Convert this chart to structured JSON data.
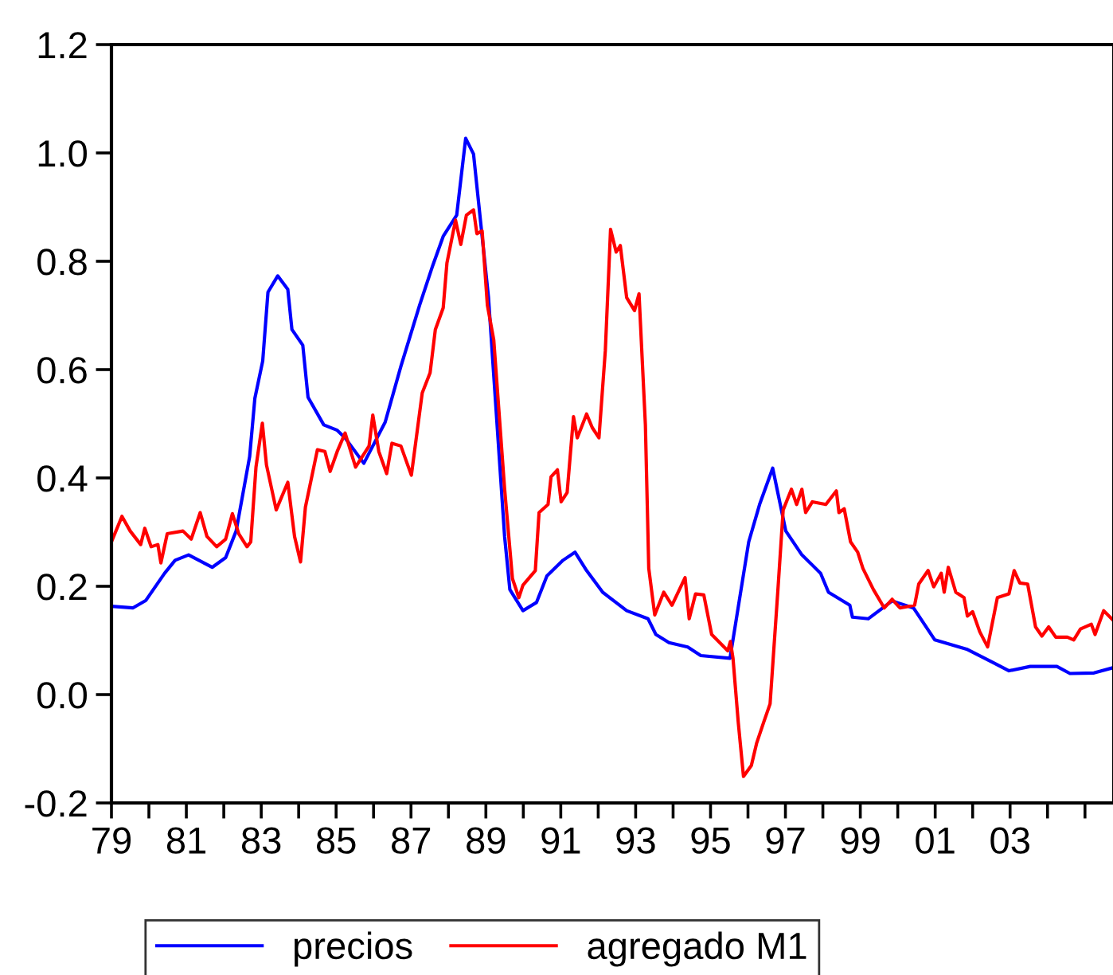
{
  "chart_data": {
    "type": "line",
    "xlim": [
      1979,
      2005.77
    ],
    "xticks": [
      {
        "value": 1979,
        "label": "79"
      },
      {
        "value": 1980,
        "label": null
      },
      {
        "value": 1981,
        "label": "81"
      },
      {
        "value": 1982,
        "label": null
      },
      {
        "value": 1983,
        "label": "83"
      },
      {
        "value": 1984,
        "label": null
      },
      {
        "value": 1985,
        "label": "85"
      },
      {
        "value": 1986,
        "label": null
      },
      {
        "value": 1987,
        "label": "87"
      },
      {
        "value": 1988,
        "label": null
      },
      {
        "value": 1989,
        "label": "89"
      },
      {
        "value": 1990,
        "label": null
      },
      {
        "value": 1991,
        "label": "91"
      },
      {
        "value": 1992,
        "label": null
      },
      {
        "value": 1993,
        "label": "93"
      },
      {
        "value": 1994,
        "label": null
      },
      {
        "value": 1995,
        "label": "95"
      },
      {
        "value": 1996,
        "label": null
      },
      {
        "value": 1997,
        "label": "97"
      },
      {
        "value": 1998,
        "label": null
      },
      {
        "value": 1999,
        "label": "99"
      },
      {
        "value": 2000,
        "label": null
      },
      {
        "value": 2001,
        "label": "01"
      },
      {
        "value": 2002,
        "label": null
      },
      {
        "value": 2003,
        "label": "03"
      },
      {
        "value": 2004,
        "label": null
      },
      {
        "value": 2005,
        "label": null
      }
    ],
    "ylim": [
      -0.2,
      1.2
    ],
    "yticks": [
      {
        "value": -0.2,
        "label": "-0.2"
      },
      {
        "value": 0.0,
        "label": "0.0"
      },
      {
        "value": 0.2,
        "label": "0.2"
      },
      {
        "value": 0.4,
        "label": "0.4"
      },
      {
        "value": 0.6,
        "label": "0.6"
      },
      {
        "value": 0.8,
        "label": "0.8"
      },
      {
        "value": 1.0,
        "label": "1.0"
      },
      {
        "value": 1.2,
        "label": "1.2"
      }
    ],
    "grid": false,
    "legend": "bottom",
    "line_style": "solid",
    "series": [
      {
        "name": "precios",
        "color": "#0000ff",
        "x": [
          1979.0,
          1979.57,
          1979.92,
          1980.42,
          1980.7,
          1981.06,
          1981.69,
          1982.05,
          1982.33,
          1982.69,
          1982.83,
          1983.04,
          1983.18,
          1983.44,
          1983.71,
          1983.82,
          1984.11,
          1984.25,
          1984.67,
          1985.03,
          1985.24,
          1985.74,
          1986.31,
          1986.73,
          1987.23,
          1987.58,
          1987.86,
          1988.22,
          1988.46,
          1988.67,
          1989.07,
          1989.5,
          1989.64,
          1989.99,
          1990.35,
          1990.63,
          1991.06,
          1991.38,
          1991.69,
          1992.12,
          1992.76,
          1993.33,
          1993.54,
          1993.89,
          1994.39,
          1994.74,
          1995.52,
          1996.02,
          1996.31,
          1996.66,
          1997.01,
          1997.44,
          1997.94,
          1998.15,
          1998.72,
          1998.79,
          1999.21,
          1999.85,
          2000.42,
          2000.99,
          2001.84,
          2002.55,
          2002.97,
          2003.54,
          2004.25,
          2004.6,
          2005.24,
          2005.77
        ],
        "values": [
          0.163,
          0.16,
          0.174,
          0.224,
          0.248,
          0.258,
          0.235,
          0.253,
          0.302,
          0.439,
          0.547,
          0.616,
          0.743,
          0.773,
          0.748,
          0.674,
          0.645,
          0.549,
          0.498,
          0.488,
          0.474,
          0.427,
          0.503,
          0.606,
          0.719,
          0.792,
          0.846,
          0.885,
          1.027,
          0.998,
          0.733,
          0.292,
          0.194,
          0.155,
          0.17,
          0.219,
          0.248,
          0.263,
          0.229,
          0.189,
          0.155,
          0.14,
          0.111,
          0.096,
          0.088,
          0.072,
          0.067,
          0.282,
          0.351,
          0.418,
          0.302,
          0.258,
          0.224,
          0.189,
          0.165,
          0.143,
          0.14,
          0.173,
          0.16,
          0.101,
          0.084,
          0.059,
          0.044,
          0.052,
          0.052,
          0.039,
          0.04,
          0.05
        ]
      },
      {
        "name": "agregado M1",
        "color": "#ff0000",
        "x": [
          1979.0,
          1979.28,
          1979.5,
          1979.78,
          1979.89,
          1980.06,
          1980.24,
          1980.32,
          1980.49,
          1980.91,
          1981.13,
          1981.37,
          1981.55,
          1981.81,
          1982.05,
          1982.23,
          1982.4,
          1982.62,
          1982.72,
          1982.86,
          1983.03,
          1983.14,
          1983.4,
          1983.71,
          1983.89,
          1984.05,
          1984.18,
          1984.5,
          1984.7,
          1984.84,
          1985.03,
          1985.24,
          1985.52,
          1985.88,
          1985.98,
          1986.14,
          1986.35,
          1986.49,
          1986.73,
          1987.01,
          1987.3,
          1987.51,
          1987.65,
          1987.86,
          1987.96,
          1988.19,
          1988.33,
          1988.48,
          1988.67,
          1988.76,
          1988.9,
          1989.04,
          1989.21,
          1989.5,
          1989.71,
          1989.88,
          1989.99,
          1990.32,
          1990.42,
          1990.66,
          1990.74,
          1990.91,
          1991.01,
          1991.17,
          1991.34,
          1991.44,
          1991.69,
          1991.84,
          1992.02,
          1992.19,
          1992.33,
          1992.48,
          1992.59,
          1992.76,
          1992.97,
          1993.09,
          1993.26,
          1993.35,
          1993.51,
          1993.75,
          1993.97,
          1994.32,
          1994.43,
          1994.6,
          1994.82,
          1995.03,
          1995.46,
          1995.53,
          1995.6,
          1995.74,
          1995.88,
          1996.09,
          1996.23,
          1996.42,
          1996.59,
          1996.8,
          1996.94,
          1997.16,
          1997.3,
          1997.44,
          1997.54,
          1997.72,
          1998.08,
          1998.36,
          1998.43,
          1998.57,
          1998.74,
          1998.93,
          1999.07,
          1999.35,
          1999.64,
          1999.85,
          2000.06,
          2000.45,
          2000.56,
          2000.81,
          2000.96,
          2001.16,
          2001.24,
          2001.35,
          2001.55,
          2001.77,
          2001.86,
          2002.0,
          2002.19,
          2002.4,
          2002.66,
          2002.97,
          2003.11,
          2003.26,
          2003.47,
          2003.68,
          2003.85,
          2004.03,
          2004.22,
          2004.53,
          2004.7,
          2004.88,
          2005.17,
          2005.27,
          2005.5,
          2005.74
        ],
        "values": [
          0.282,
          0.329,
          0.302,
          0.277,
          0.307,
          0.273,
          0.277,
          0.243,
          0.297,
          0.302,
          0.287,
          0.336,
          0.292,
          0.273,
          0.287,
          0.334,
          0.297,
          0.273,
          0.282,
          0.42,
          0.501,
          0.424,
          0.341,
          0.392,
          0.292,
          0.245,
          0.346,
          0.452,
          0.449,
          0.412,
          0.449,
          0.483,
          0.42,
          0.459,
          0.516,
          0.449,
          0.408,
          0.464,
          0.459,
          0.405,
          0.557,
          0.594,
          0.674,
          0.714,
          0.797,
          0.876,
          0.831,
          0.885,
          0.895,
          0.851,
          0.856,
          0.719,
          0.655,
          0.38,
          0.214,
          0.179,
          0.202,
          0.229,
          0.336,
          0.351,
          0.402,
          0.415,
          0.356,
          0.373,
          0.513,
          0.474,
          0.518,
          0.493,
          0.474,
          0.635,
          0.859,
          0.817,
          0.829,
          0.733,
          0.709,
          0.74,
          0.498,
          0.233,
          0.147,
          0.189,
          0.165,
          0.216,
          0.14,
          0.186,
          0.184,
          0.111,
          0.081,
          0.098,
          0.067,
          -0.051,
          -0.151,
          -0.131,
          -0.09,
          -0.051,
          -0.017,
          0.194,
          0.341,
          0.379,
          0.351,
          0.379,
          0.336,
          0.356,
          0.351,
          0.376,
          0.336,
          0.343,
          0.282,
          0.263,
          0.233,
          0.194,
          0.16,
          0.176,
          0.16,
          0.165,
          0.204,
          0.229,
          0.199,
          0.224,
          0.189,
          0.235,
          0.189,
          0.179,
          0.145,
          0.153,
          0.116,
          0.088,
          0.179,
          0.186,
          0.229,
          0.206,
          0.204,
          0.125,
          0.108,
          0.125,
          0.106,
          0.106,
          0.101,
          0.121,
          0.13,
          0.111,
          0.155,
          0.138
        ]
      }
    ]
  }
}
